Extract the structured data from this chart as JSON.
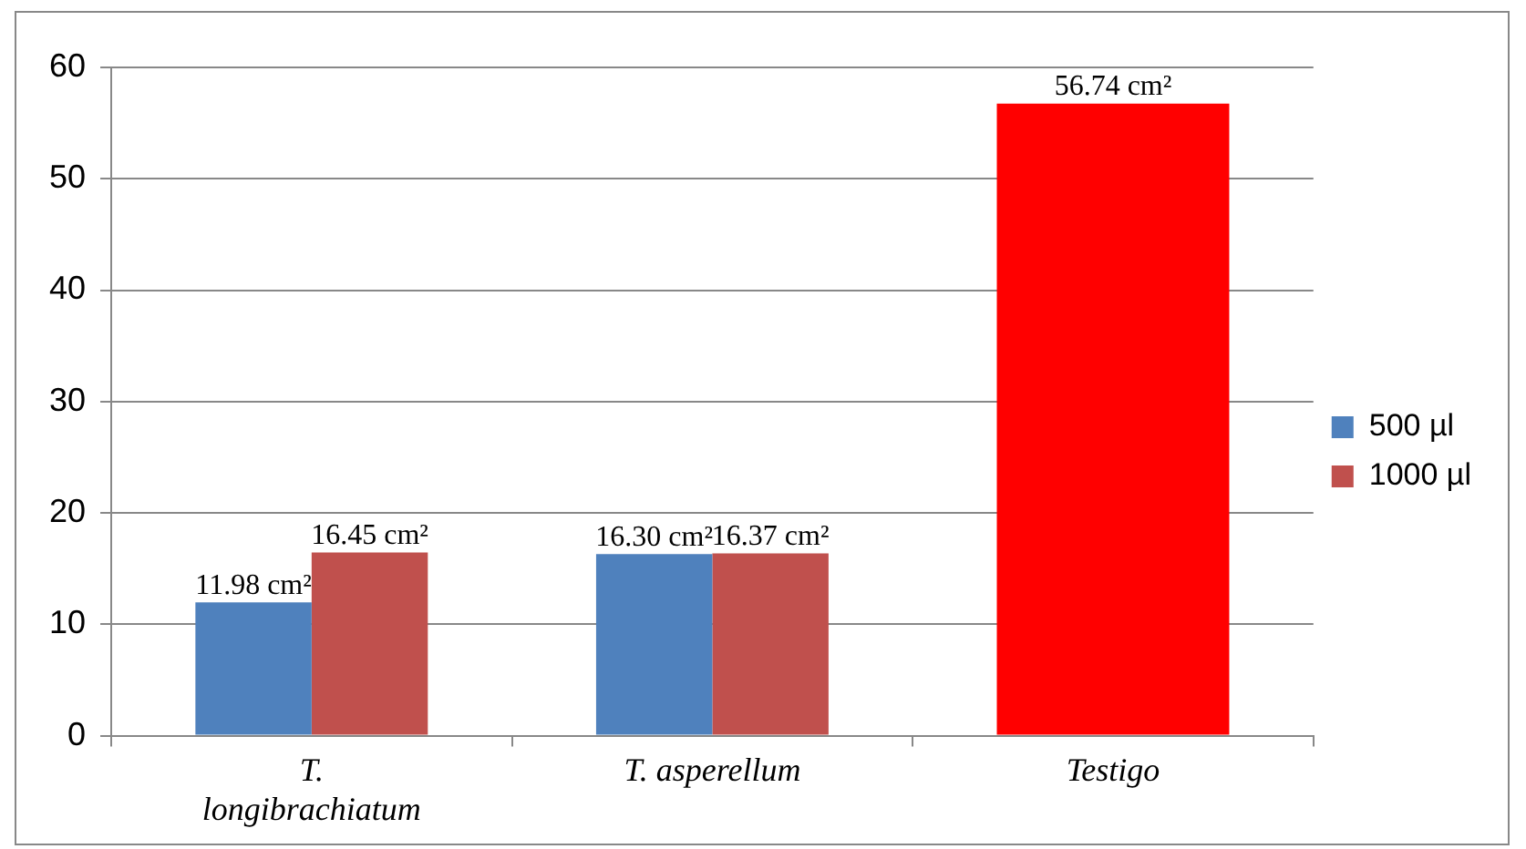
{
  "chart_data": {
    "type": "bar",
    "categories": [
      "T. longibrachiatum",
      "T. asperellum",
      "Testigo"
    ],
    "series": [
      {
        "name": "500 µl",
        "color": "#4f81bd",
        "values": [
          11.98,
          16.3,
          null
        ],
        "value_labels": [
          "11.98 cm²",
          "16.30 cm²",
          null
        ]
      },
      {
        "name": "1000 µl",
        "color": "#c0504d",
        "colors": [
          "#c0504d",
          "#c0504d",
          "#ff0000"
        ],
        "values": [
          16.45,
          16.37,
          56.74
        ],
        "value_labels": [
          "16.45 cm²",
          "16.37 cm²",
          "56.74 cm²"
        ]
      }
    ],
    "ylim": [
      0,
      60
    ],
    "yticks": [
      0,
      10,
      20,
      30,
      40,
      50,
      60
    ],
    "grid": "y",
    "legend": "right"
  }
}
